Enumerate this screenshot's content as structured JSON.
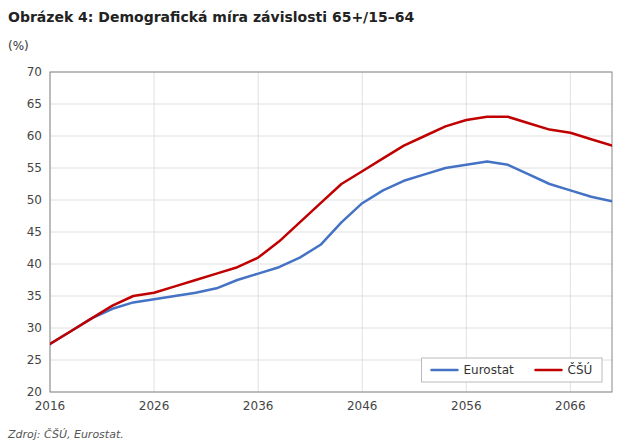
{
  "chart_data": {
    "type": "line",
    "title": "Obrázek 4: Demografická míra závislosti 65+/15–64",
    "ylabel": "(%)",
    "source": "Zdroj: ČŠÚ, Eurostat.",
    "x": [
      2016,
      2018,
      2020,
      2022,
      2024,
      2026,
      2028,
      2030,
      2032,
      2034,
      2036,
      2038,
      2040,
      2042,
      2044,
      2046,
      2048,
      2050,
      2052,
      2054,
      2056,
      2058,
      2060,
      2062,
      2064,
      2066,
      2068,
      2070
    ],
    "series": [
      {
        "name": "Eurostat",
        "color": "#4472C4",
        "values": [
          27.5,
          29.5,
          31.5,
          33.0,
          34.0,
          34.5,
          35.0,
          35.5,
          36.2,
          37.5,
          38.5,
          39.5,
          41.0,
          43.0,
          46.5,
          49.5,
          51.5,
          53.0,
          54.0,
          55.0,
          55.5,
          56.0,
          55.5,
          54.0,
          52.5,
          51.5,
          50.5,
          49.8
        ]
      },
      {
        "name": "ČŠÚ",
        "color": "#C00000",
        "values": [
          27.5,
          29.5,
          31.5,
          33.5,
          35.0,
          35.5,
          36.5,
          37.5,
          38.5,
          39.5,
          41.0,
          43.5,
          46.5,
          49.5,
          52.5,
          54.5,
          56.5,
          58.5,
          60.0,
          61.5,
          62.5,
          63.0,
          63.0,
          62.0,
          61.0,
          60.5,
          59.5,
          58.5
        ]
      }
    ],
    "xlim": [
      2016,
      2070
    ],
    "xticks": [
      2016,
      2026,
      2036,
      2046,
      2056,
      2066
    ],
    "ylim": [
      20,
      70
    ],
    "yticks": [
      20,
      25,
      30,
      35,
      40,
      45,
      50,
      55,
      60,
      65,
      70
    ],
    "grid": true,
    "legend": "lower right"
  }
}
